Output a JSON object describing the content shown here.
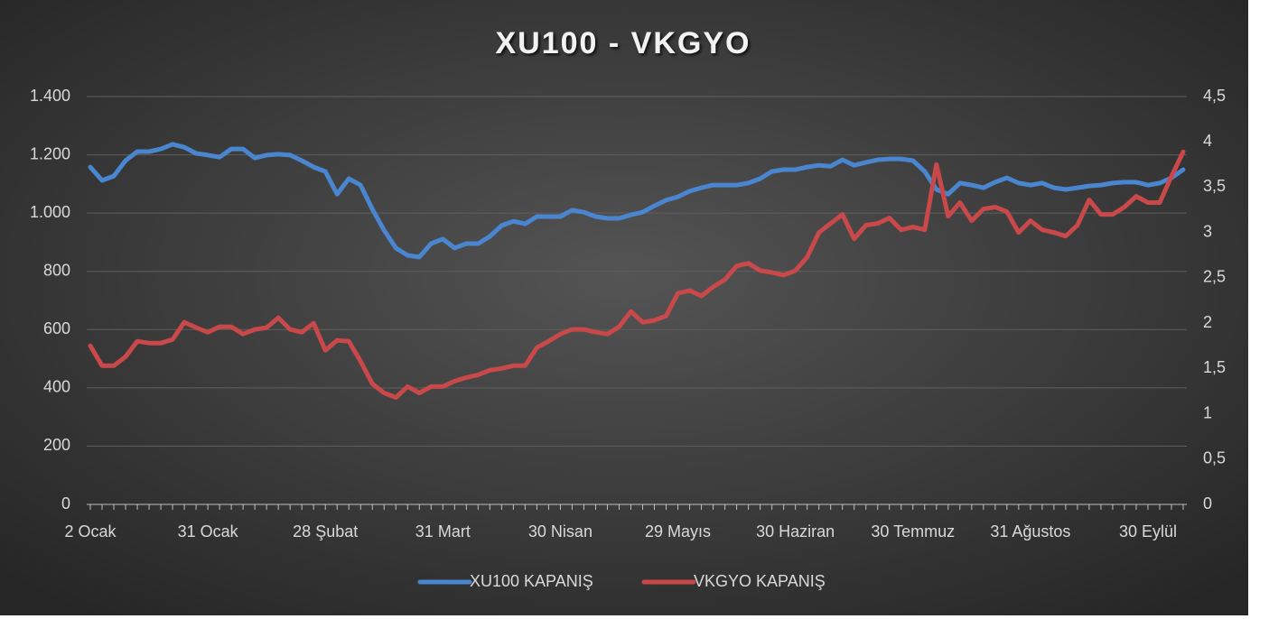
{
  "chart_data": {
    "type": "line",
    "title": "XU100 - VKGYO",
    "categories": [
      "2 Ocak",
      null,
      null,
      null,
      null,
      null,
      null,
      null,
      null,
      null,
      "31 Ocak",
      null,
      null,
      null,
      null,
      null,
      null,
      null,
      null,
      null,
      "28 Şubat",
      null,
      null,
      null,
      null,
      null,
      null,
      null,
      null,
      null,
      "31 Mart",
      null,
      null,
      null,
      null,
      null,
      null,
      null,
      null,
      null,
      "30 Nisan",
      null,
      null,
      null,
      null,
      null,
      null,
      null,
      null,
      null,
      "29 Mayıs",
      null,
      null,
      null,
      null,
      null,
      null,
      null,
      null,
      null,
      "30 Haziran",
      null,
      null,
      null,
      null,
      null,
      null,
      null,
      null,
      null,
      "30 Temmuz",
      null,
      null,
      null,
      null,
      null,
      null,
      null,
      null,
      null,
      "31 Ağustos",
      null,
      null,
      null,
      null,
      null,
      null,
      null,
      null,
      null,
      "30 Eylül",
      null,
      null,
      null
    ],
    "series": [
      {
        "name": "XU100 KAPANIŞ",
        "color": "#4a86d0",
        "values": [
          1158,
          1112,
          1127,
          1180,
          1211,
          1211,
          1220,
          1236,
          1226,
          1205,
          1199,
          1192,
          1220,
          1220,
          1189,
          1199,
          1202,
          1199,
          1180,
          1158,
          1143,
          1065,
          1118,
          1096,
          1013,
          941,
          880,
          855,
          849,
          895,
          911,
          880,
          895,
          895,
          920,
          957,
          972,
          963,
          988,
          988,
          988,
          1010,
          1003,
          988,
          982,
          982,
          994,
          1003,
          1025,
          1044,
          1056,
          1075,
          1087,
          1096,
          1096,
          1096,
          1103,
          1118,
          1143,
          1149,
          1149,
          1158,
          1164,
          1161,
          1183,
          1164,
          1174,
          1183,
          1186,
          1186,
          1180,
          1143,
          1081,
          1065,
          1103,
          1096,
          1087,
          1106,
          1121,
          1103,
          1096,
          1103,
          1087,
          1081,
          1087,
          1093,
          1096,
          1103,
          1106,
          1106,
          1096,
          1103,
          1121,
          1149
        ]
      },
      {
        "name": "VKGYO KAPANIŞ",
        "color": "#c9484a",
        "axis": "y2",
        "values": [
          1.75,
          1.53,
          1.53,
          1.63,
          1.8,
          1.78,
          1.78,
          1.82,
          2.01,
          1.95,
          1.9,
          1.96,
          1.96,
          1.88,
          1.93,
          1.95,
          2.06,
          1.93,
          1.9,
          2.0,
          1.7,
          1.81,
          1.8,
          1.58,
          1.33,
          1.23,
          1.18,
          1.3,
          1.23,
          1.3,
          1.3,
          1.36,
          1.4,
          1.43,
          1.48,
          1.5,
          1.53,
          1.53,
          1.73,
          1.8,
          1.88,
          1.93,
          1.93,
          1.9,
          1.88,
          1.96,
          2.13,
          2.01,
          2.03,
          2.08,
          2.33,
          2.36,
          2.3,
          2.4,
          2.48,
          2.63,
          2.66,
          2.58,
          2.56,
          2.53,
          2.58,
          2.73,
          3.0,
          3.1,
          3.2,
          2.93,
          3.08,
          3.1,
          3.16,
          3.03,
          3.06,
          3.03,
          3.75,
          3.18,
          3.33,
          3.13,
          3.26,
          3.28,
          3.23,
          3.0,
          3.13,
          3.03,
          3.0,
          2.96,
          3.08,
          3.36,
          3.2,
          3.2,
          3.28,
          3.4,
          3.33,
          3.33,
          3.62,
          3.89
        ]
      }
    ],
    "ylim": [
      0,
      1400
    ],
    "yticks": [
      0,
      200,
      400,
      600,
      800,
      {
        "value": 1000,
        "label": "1.000"
      },
      {
        "value": 1200,
        "label": "1.200"
      },
      {
        "value": 1400,
        "label": "1.400"
      }
    ],
    "y2lim": [
      0,
      4.5
    ],
    "y2ticks": [
      0,
      {
        "value": 0.5,
        "label": "0,5"
      },
      1,
      {
        "value": 1.5,
        "label": "1,5"
      },
      2,
      {
        "value": 2.5,
        "label": "2,5"
      },
      3,
      {
        "value": 3.5,
        "label": "3,5"
      },
      4,
      {
        "value": 4.5,
        "label": "4,5"
      }
    ],
    "grid": true,
    "legend": "bottom"
  }
}
